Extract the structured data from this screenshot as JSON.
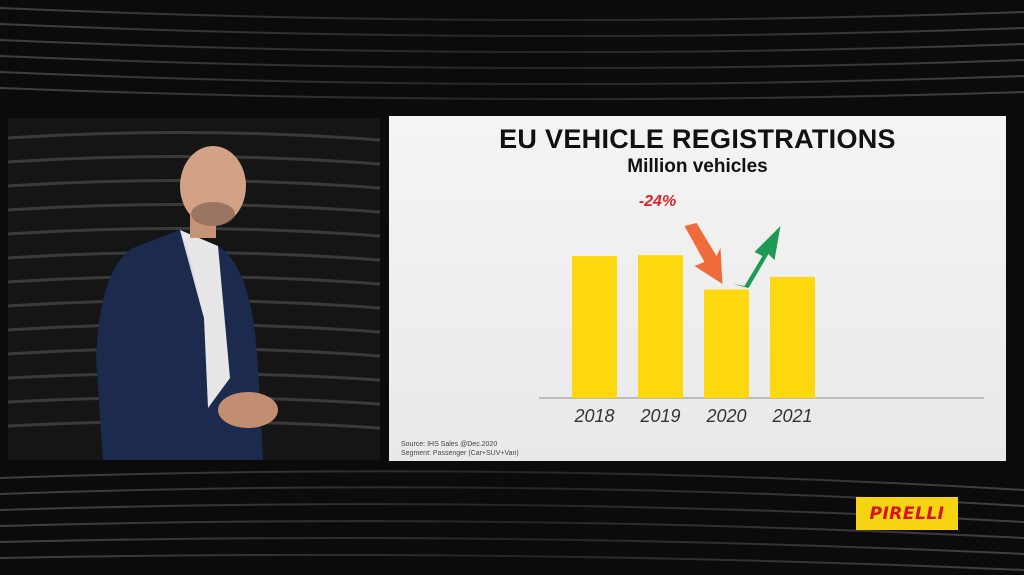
{
  "slide": {
    "title": "EU VEHICLE REGISTRATIONS",
    "subtitle": "Million vehicles",
    "source_line1": "Source: IHS Sales @Dec.2020",
    "source_line2": "Segment: Passenger (Car+SUV+Van)"
  },
  "chart_data": {
    "type": "bar",
    "title": "EU VEHICLE REGISTRATIONS",
    "subtitle": "Million vehicles",
    "categories": [
      "2018",
      "2019",
      "2020",
      "2021"
    ],
    "values": [
      17.0,
      17.1,
      13.0,
      14.5
    ],
    "ylim": [
      0,
      20
    ],
    "bar_color": "#fed80e",
    "annotations": [
      {
        "text": "-24%",
        "color": "#e2202a"
      },
      {
        "type": "arrow-down",
        "color": "#f06a3a",
        "between": [
          "2019",
          "2020"
        ]
      },
      {
        "type": "arrow-up",
        "color": "#1f9a55",
        "between": [
          "2020",
          "2021"
        ]
      }
    ]
  },
  "branding": {
    "logo_text": "PIRELLI",
    "logo_bg": "#f6d313",
    "logo_fg": "#d3141c"
  }
}
